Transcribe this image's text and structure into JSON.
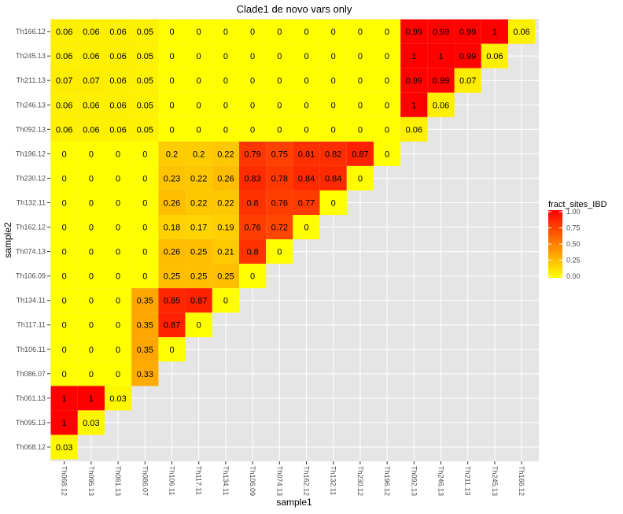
{
  "chart_data": {
    "type": "heatmap",
    "title": "Clade1 de novo vars only",
    "xlabel": "sample1",
    "ylabel": "sample2",
    "x_categories": [
      "Th068.12",
      "Th095.13",
      "Th061.13",
      "Th086.07",
      "Th106.11",
      "Th117.11",
      "Th134.11",
      "Th106.09",
      "Th074.13",
      "Th162.12",
      "Th132.11",
      "Th230.12",
      "Th196.12",
      "Th092.13",
      "Th246.13",
      "Th211.13",
      "Th245.13",
      "Th166.12"
    ],
    "y_categories": [
      "Th166.12",
      "Th245.13",
      "Th211.13",
      "Th246.13",
      "Th092.13",
      "Th196.12",
      "Th230.12",
      "Th132.11",
      "Th162.12",
      "Th074.13",
      "Th106.09",
      "Th134.11",
      "Th117.11",
      "Th106.11",
      "Th086.07",
      "Th061.13",
      "Th095.13",
      "Th068.12"
    ],
    "values": [
      [
        0.06,
        0.06,
        0.06,
        0.05,
        0,
        0,
        0,
        0,
        0,
        0,
        0,
        0,
        0,
        0.99,
        0.99,
        0.99,
        1,
        0.06
      ],
      [
        0.06,
        0.06,
        0.06,
        0.05,
        0,
        0,
        0,
        0,
        0,
        0,
        0,
        0,
        0,
        1,
        1,
        0.99,
        0.06
      ],
      [
        0.07,
        0.07,
        0.06,
        0.05,
        0,
        0,
        0,
        0,
        0,
        0,
        0,
        0,
        0,
        0.99,
        0.99,
        0.07
      ],
      [
        0.06,
        0.06,
        0.06,
        0.05,
        0,
        0,
        0,
        0,
        0,
        0,
        0,
        0,
        0,
        1,
        0.06
      ],
      [
        0.06,
        0.06,
        0.06,
        0.05,
        0,
        0,
        0,
        0,
        0,
        0,
        0,
        0,
        0,
        0.06
      ],
      [
        0,
        0,
        0,
        0,
        0.2,
        0.2,
        0.22,
        0.79,
        0.75,
        0.81,
        0.82,
        0.87,
        0
      ],
      [
        0,
        0,
        0,
        0,
        0.23,
        0.22,
        0.26,
        0.83,
        0.78,
        0.84,
        0.84,
        0
      ],
      [
        0,
        0,
        0,
        0,
        0.26,
        0.22,
        0.22,
        0.8,
        0.76,
        0.77,
        0
      ],
      [
        0,
        0,
        0,
        0,
        0.18,
        0.17,
        0.19,
        0.76,
        0.72,
        0
      ],
      [
        0,
        0,
        0,
        0,
        0.26,
        0.25,
        0.21,
        0.8,
        0
      ],
      [
        0,
        0,
        0,
        0,
        0.25,
        0.25,
        0.25,
        0
      ],
      [
        0,
        0,
        0,
        0.35,
        0.85,
        0.87,
        0
      ],
      [
        0,
        0,
        0,
        0.35,
        0.87,
        0
      ],
      [
        0,
        0,
        0,
        0.35,
        0
      ],
      [
        0,
        0,
        0,
        0.33
      ],
      [
        1,
        1,
        0.03
      ],
      [
        1,
        0.03
      ],
      [
        0.03
      ]
    ],
    "legend": {
      "title": "fract_sites_IBD",
      "ticks": [
        "1.00",
        "0.75",
        "0.50",
        "0.25",
        "0.00"
      ],
      "placement": "right"
    },
    "color_low": "#ffff00",
    "color_high": "#ff0000",
    "panel_background": "#e5e5e5",
    "grid": true
  }
}
